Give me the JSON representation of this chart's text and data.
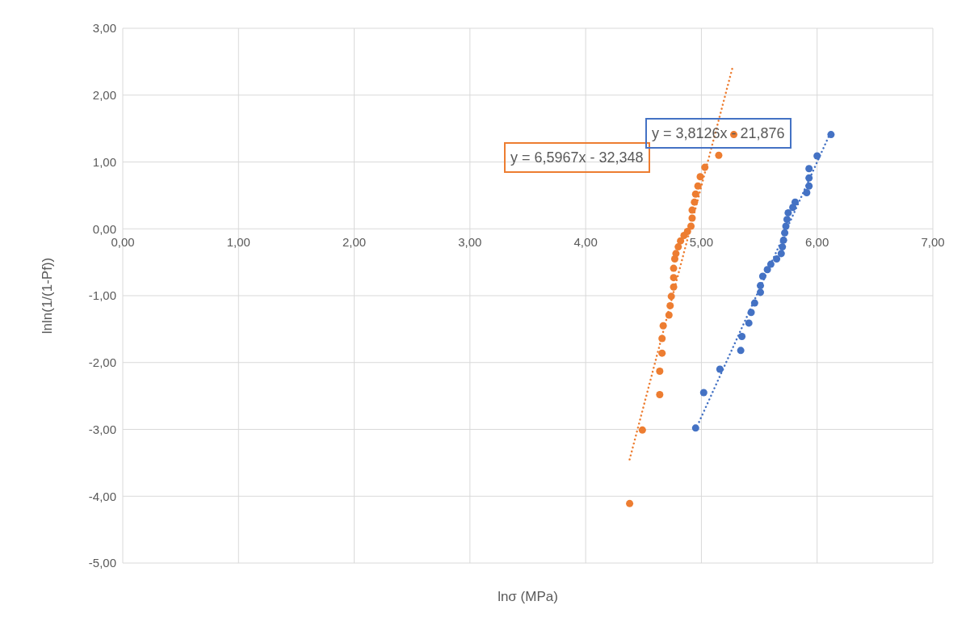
{
  "chart_data": {
    "type": "scatter",
    "xlabel": "lnσ (MPa)",
    "ylabel": "lnln(1/(1-Pf))",
    "xlim": [
      0,
      7
    ],
    "xticks": [
      {
        "value": 0,
        "label": "0,00"
      },
      {
        "value": 1,
        "label": "1,00"
      },
      {
        "value": 2,
        "label": "2,00"
      },
      {
        "value": 3,
        "label": "3,00"
      },
      {
        "value": 4,
        "label": "4,00"
      },
      {
        "value": 5,
        "label": "5,00"
      },
      {
        "value": 6,
        "label": "6,00"
      },
      {
        "value": 7,
        "label": "7,00"
      }
    ],
    "ylim": [
      -5,
      3
    ],
    "yticks": [
      {
        "value": -5,
        "label": "-5,00"
      },
      {
        "value": -4,
        "label": "-4,00"
      },
      {
        "value": -3,
        "label": "-3,00"
      },
      {
        "value": -2,
        "label": "-2,00"
      },
      {
        "value": -1,
        "label": "-1,00"
      },
      {
        "value": 0,
        "label": "0,00"
      },
      {
        "value": 1,
        "label": "1,00"
      },
      {
        "value": 2,
        "label": "2,00"
      },
      {
        "value": 3,
        "label": "3,00"
      }
    ],
    "grid": true,
    "marker": "circle",
    "series": [
      {
        "color": "#ed7d31",
        "x": [
          4.38,
          4.49,
          4.64,
          4.64,
          4.66,
          4.66,
          4.67,
          4.72,
          4.73,
          4.74,
          4.76,
          4.76,
          4.76,
          4.77,
          4.78,
          4.8,
          4.82,
          4.85,
          4.88,
          4.91,
          4.92,
          4.92,
          4.94,
          4.95,
          4.97,
          4.99,
          5.03,
          5.15,
          5.28
        ],
        "values": [
          -4.11,
          -3.01,
          -2.48,
          -2.13,
          -1.86,
          -1.64,
          -1.45,
          -1.29,
          -1.15,
          -1.01,
          -0.87,
          -0.73,
          -0.59,
          -0.45,
          -0.37,
          -0.27,
          -0.18,
          -0.1,
          -0.04,
          0.04,
          0.16,
          0.28,
          0.4,
          0.52,
          0.64,
          0.78,
          0.92,
          1.1,
          1.41
        ]
      },
      {
        "color": "#4472c4",
        "x": [
          4.95,
          5.02,
          5.16,
          5.34,
          5.35,
          5.41,
          5.43,
          5.46,
          5.51,
          5.51,
          5.53,
          5.57,
          5.6,
          5.65,
          5.69,
          5.7,
          5.71,
          5.72,
          5.73,
          5.74,
          5.75,
          5.79,
          5.81,
          5.91,
          5.93,
          5.93,
          5.93,
          6.0,
          6.12
        ],
        "values": [
          -2.98,
          -2.45,
          -2.1,
          -1.82,
          -1.61,
          -1.41,
          -1.25,
          -1.11,
          -0.95,
          -0.85,
          -0.71,
          -0.61,
          -0.53,
          -0.45,
          -0.37,
          -0.27,
          -0.17,
          -0.06,
          0.04,
          0.14,
          0.24,
          0.32,
          0.4,
          0.54,
          0.64,
          0.76,
          0.9,
          1.09,
          1.41
        ]
      },
      {
        "type": "line",
        "color": "#ed7d31",
        "line_style": "dotted",
        "marker": "none",
        "x": [
          4.38,
          5.27
        ],
        "values": [
          -3.45,
          2.42
        ]
      },
      {
        "type": "line",
        "color": "#4472c4",
        "line_style": "dotted",
        "marker": "none",
        "x": [
          4.98,
          6.1
        ],
        "values": [
          -2.89,
          1.38
        ]
      }
    ],
    "annotations": [
      "y = 6,5967x - 32,348",
      "y = 3,8126x - 21,876"
    ]
  }
}
